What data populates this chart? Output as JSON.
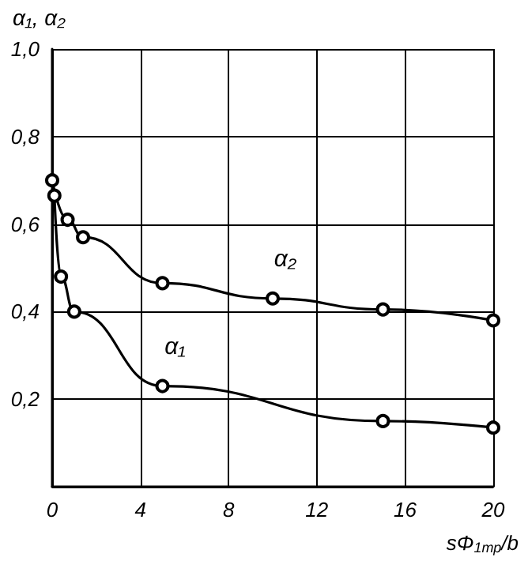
{
  "chart_data": {
    "type": "line",
    "ylabel": "α₁, α₂",
    "xlabel": "sΦ$_{1тр}$/b",
    "series": [
      {
        "name": "α₂",
        "color": "#000000",
        "x": [
          0,
          0.7,
          1.4,
          5,
          10,
          15,
          20
        ],
        "values": [
          0.7,
          0.61,
          0.57,
          0.465,
          0.43,
          0.405,
          0.38
        ]
      },
      {
        "name": "α₁",
        "color": "#000000",
        "x": [
          0.1,
          0.4,
          1,
          5,
          15,
          20
        ],
        "values": [
          0.665,
          0.48,
          0.4,
          0.23,
          0.15,
          0.135
        ]
      }
    ],
    "xlim": [
      0,
      20
    ],
    "xticks": [
      0,
      4,
      8,
      12,
      16,
      20
    ],
    "ylim": [
      0,
      1
    ],
    "yticks": [
      {
        "value": 0,
        "label": null
      },
      {
        "value": 0.2,
        "label": "0,2"
      },
      {
        "value": 0.4,
        "label": "0,4"
      },
      {
        "value": 0.6,
        "label": "0,6"
      },
      {
        "value": 0.8,
        "label": "0,8"
      },
      {
        "value": 1,
        "label": "1,0"
      }
    ],
    "grid": true,
    "marker": "circle"
  }
}
